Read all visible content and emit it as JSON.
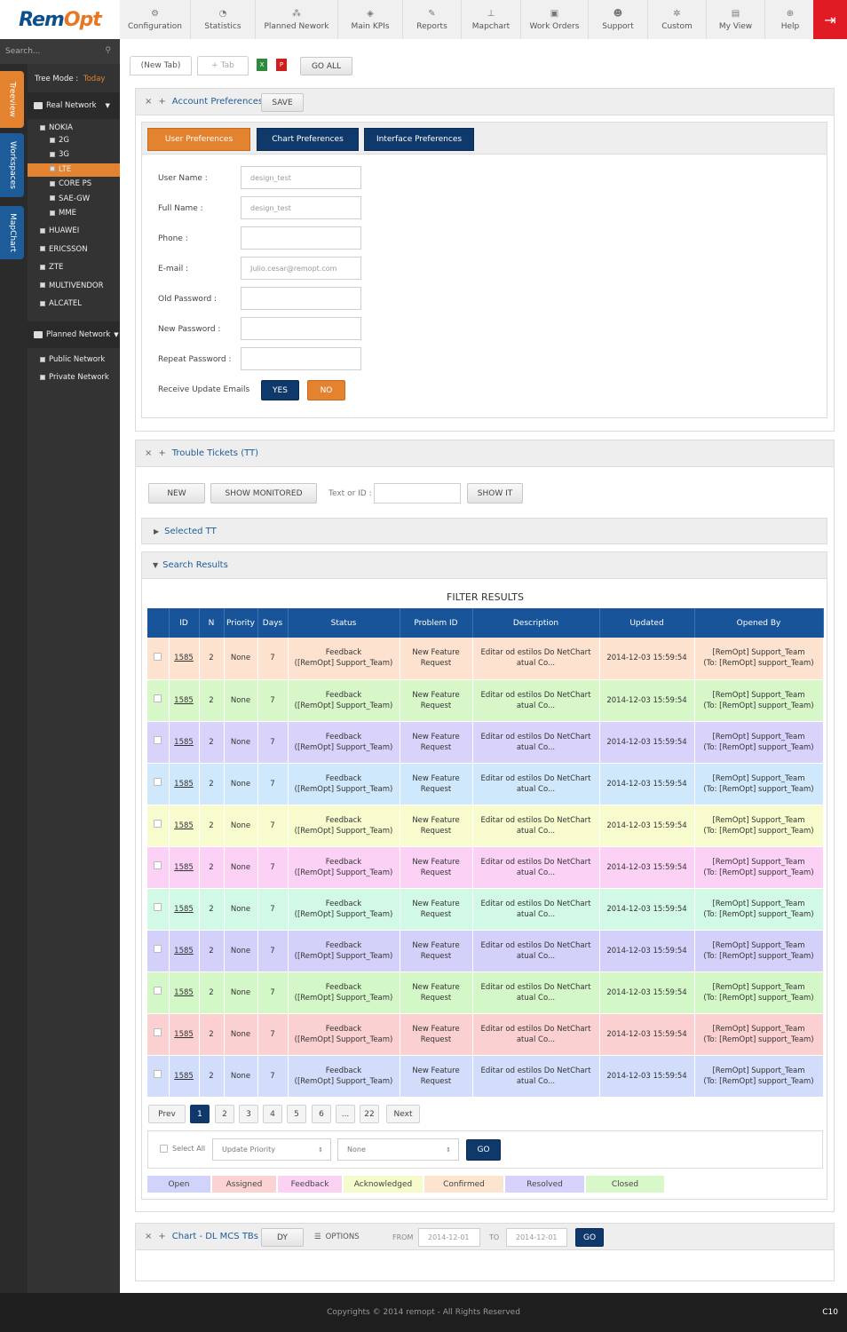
{
  "logo": {
    "part1": "Rem",
    "part2": "Opt"
  },
  "menu": [
    {
      "label": "Configuration",
      "icon": "gears-icon",
      "glyph": "⚙"
    },
    {
      "label": "Statistics",
      "icon": "pie-chart-icon",
      "glyph": "◔"
    },
    {
      "label": "Planned Nework",
      "icon": "network-icon",
      "glyph": "⁂"
    },
    {
      "label": "Main KPIs",
      "icon": "cube-icon",
      "glyph": "◈"
    },
    {
      "label": "Reports",
      "icon": "edit-icon",
      "glyph": "✎"
    },
    {
      "label": "Mapchart",
      "icon": "sitemap-icon",
      "glyph": "⊥"
    },
    {
      "label": "Work Orders",
      "icon": "briefcase-icon",
      "glyph": "▣"
    },
    {
      "label": "Support",
      "icon": "users-icon",
      "glyph": "☻"
    },
    {
      "label": "Custom",
      "icon": "cog-icon",
      "glyph": "✲"
    },
    {
      "label": "My View",
      "icon": "file-icon",
      "glyph": "▤"
    },
    {
      "label": "Help",
      "icon": "lifebuoy-icon",
      "glyph": "⊕"
    }
  ],
  "sidebar": {
    "search_placeholder": "Search...",
    "vertical_tabs": [
      "Treeview",
      "Workspaces",
      "MapChart"
    ],
    "tree_mode_label": "Tree Mode :",
    "tree_mode_value": "Today",
    "real_network": "Real Network",
    "nokia": "NOKIA",
    "nokia_children": [
      "2G",
      "3G",
      "LTE",
      "CORE PS",
      "SAE-GW",
      "MME"
    ],
    "vendors": [
      "HUAWEI",
      "ERICSSON",
      "ZTE",
      "MULTIVENDOR",
      "ALCATEL"
    ],
    "planned_network": "Planned Network",
    "planned_children": [
      "Public Network",
      "Private Network"
    ]
  },
  "tabs": {
    "current": "(New Tab)",
    "add": "+ Tab",
    "go_all": "GO ALL"
  },
  "account": {
    "title": "Account Preferences",
    "save": "SAVE",
    "subtabs": [
      "User Preferences",
      "Chart Preferences",
      "Interface Preferences"
    ],
    "fields": [
      {
        "label": "User Name :",
        "value": "design_test"
      },
      {
        "label": "Full Name :",
        "value": "design_test"
      },
      {
        "label": "Phone :",
        "value": ""
      },
      {
        "label": "E-mail :",
        "value": "Julio.cesar@remopt.com"
      },
      {
        "label": "Old Password :",
        "value": ""
      },
      {
        "label": "New Password :",
        "value": ""
      },
      {
        "label": "Repeat Password :",
        "value": ""
      }
    ],
    "receive_label": "Receive Update Emails",
    "yes": "YES",
    "no": "NO"
  },
  "tt": {
    "title": "Trouble Tickets (TT)",
    "new": "NEW",
    "show_monitored": "SHOW MONITORED",
    "text_or_id": "Text or ID :",
    "show_it": "SHOW IT",
    "selected_tt": "Selected TT",
    "search_results": "Search Results",
    "filter_results": "FILTER RESULTS",
    "columns": [
      "",
      "ID",
      "N",
      "Priority",
      "Days",
      "Status",
      "Problem ID",
      "Description",
      "Updated",
      "Opened By"
    ],
    "rows": [
      {
        "id": "1585",
        "n": "2",
        "priority": "None",
        "days": "7",
        "status1": "Feedback",
        "status2": "([RemOpt] Support_Team)",
        "prob1": "New Feature",
        "prob2": "Request",
        "desc1": "Editar od estilos Do NetChart",
        "desc2": "atual Co...",
        "updated": "2014-12-03 15:59:54",
        "by1": "[RemOpt] Support_Team",
        "by2": "(To: [RemOpt] support_Team)",
        "color": "#fde3cf"
      },
      {
        "id": "1585",
        "n": "2",
        "priority": "None",
        "days": "7",
        "status1": "Feedback",
        "status2": "([RemOpt] Support_Team)",
        "prob1": "New Feature",
        "prob2": "Request",
        "desc1": "Editar od estilos Do NetChart",
        "desc2": "atual Co...",
        "updated": "2014-12-03 15:59:54",
        "by1": "[RemOpt] Support_Team",
        "by2": "(To: [RemOpt] support_Team)",
        "color": "#d7f7c9"
      },
      {
        "id": "1585",
        "n": "2",
        "priority": "None",
        "days": "7",
        "status1": "Feedback",
        "status2": "([RemOpt] Support_Team)",
        "prob1": "New Feature",
        "prob2": "Request",
        "desc1": "Editar od estilos Do NetChart",
        "desc2": "atual Co...",
        "updated": "2014-12-03 15:59:54",
        "by1": "[RemOpt] Support_Team",
        "by2": "(To: [RemOpt] support_Team)",
        "color": "#d9d2fb"
      },
      {
        "id": "1585",
        "n": "2",
        "priority": "None",
        "days": "7",
        "status1": "Feedback",
        "status2": "([RemOpt] Support_Team)",
        "prob1": "New Feature",
        "prob2": "Request",
        "desc1": "Editar od estilos Do NetChart",
        "desc2": "atual Co...",
        "updated": "2014-12-03 15:59:54",
        "by1": "[RemOpt] Support_Team",
        "by2": "(To: [RemOpt] support_Team)",
        "color": "#cfe8fb"
      },
      {
        "id": "1585",
        "n": "2",
        "priority": "None",
        "days": "7",
        "status1": "Feedback",
        "status2": "([RemOpt] Support_Team)",
        "prob1": "New Feature",
        "prob2": "Request",
        "desc1": "Editar od estilos Do NetChart",
        "desc2": "atual Co...",
        "updated": "2014-12-03 15:59:54",
        "by1": "[RemOpt] Support_Team",
        "by2": "(To: [RemOpt] support_Team)",
        "color": "#f7fbcd"
      },
      {
        "id": "1585",
        "n": "2",
        "priority": "None",
        "days": "7",
        "status1": "Feedback",
        "status2": "([RemOpt] Support_Team)",
        "prob1": "New Feature",
        "prob2": "Request",
        "desc1": "Editar od estilos Do NetChart",
        "desc2": "atual Co...",
        "updated": "2014-12-03 15:59:54",
        "by1": "[RemOpt] Support_Team",
        "by2": "(To: [RemOpt] support_Team)",
        "color": "#fbd2f5"
      },
      {
        "id": "1585",
        "n": "2",
        "priority": "None",
        "days": "7",
        "status1": "Feedback",
        "status2": "([RemOpt] Support_Team)",
        "prob1": "New Feature",
        "prob2": "Request",
        "desc1": "Editar od estilos Do NetChart",
        "desc2": "atual Co...",
        "updated": "2014-12-03 15:59:54",
        "by1": "[RemOpt] Support_Team",
        "by2": "(To: [RemOpt] support_Team)",
        "color": "#d2f8e6"
      },
      {
        "id": "1585",
        "n": "2",
        "priority": "None",
        "days": "7",
        "status1": "Feedback",
        "status2": "([RemOpt] Support_Team)",
        "prob1": "New Feature",
        "prob2": "Request",
        "desc1": "Editar od estilos Do NetChart",
        "desc2": "atual Co...",
        "updated": "2014-12-03 15:59:54",
        "by1": "[RemOpt] Support_Team",
        "by2": "(To: [RemOpt] support_Team)",
        "color": "#d3d1fa"
      },
      {
        "id": "1585",
        "n": "2",
        "priority": "None",
        "days": "7",
        "status1": "Feedback",
        "status2": "([RemOpt] Support_Team)",
        "prob1": "New Feature",
        "prob2": "Request",
        "desc1": "Editar od estilos Do NetChart",
        "desc2": "atual Co...",
        "updated": "2014-12-03 15:59:54",
        "by1": "[RemOpt] Support_Team",
        "by2": "(To: [RemOpt] support_Team)",
        "color": "#d3f7c6"
      },
      {
        "id": "1585",
        "n": "2",
        "priority": "None",
        "days": "7",
        "status1": "Feedback",
        "status2": "([RemOpt] Support_Team)",
        "prob1": "New Feature",
        "prob2": "Request",
        "desc1": "Editar od estilos Do NetChart",
        "desc2": "atual Co...",
        "updated": "2014-12-03 15:59:54",
        "by1": "[RemOpt] Support_Team",
        "by2": "(To: [RemOpt] support_Team)",
        "color": "#fbd0d0"
      },
      {
        "id": "1585",
        "n": "2",
        "priority": "None",
        "days": "7",
        "status1": "Feedback",
        "status2": "([RemOpt] Support_Team)",
        "prob1": "New Feature",
        "prob2": "Request",
        "desc1": "Editar od estilos Do NetChart",
        "desc2": "atual Co...",
        "updated": "2014-12-03 15:59:54",
        "by1": "[RemOpt] Support_Team",
        "by2": "(To: [RemOpt] support_Team)",
        "color": "#d2dcfb"
      }
    ],
    "pagination": [
      "Prev",
      "1",
      "2",
      "3",
      "4",
      "5",
      "6",
      "...",
      "22",
      "Next"
    ],
    "select_all": "Select All",
    "update_priority": "Update Priority",
    "none_option": "None",
    "go": "GO",
    "legend": [
      {
        "label": "Open",
        "color": "#d2d3fb"
      },
      {
        "label": "Assigned",
        "color": "#fbd3d3"
      },
      {
        "label": "Feedback",
        "color": "#fbd1f4"
      },
      {
        "label": "Acknowledged",
        "color": "#f6fbcc"
      },
      {
        "label": "Confirmed",
        "color": "#fde4cf"
      },
      {
        "label": "Resolved",
        "color": "#d6d2fb"
      },
      {
        "label": "Closed",
        "color": "#d9f8ca"
      }
    ]
  },
  "chart_panel": {
    "title": "Chart - DL MCS TBs",
    "dy": "DY",
    "options": "OPTIONS",
    "from_label": "FROM",
    "from_value": "2014-12-01",
    "to_label": "TO",
    "to_value": "2014-12-01",
    "go": "GO"
  },
  "footer": {
    "copyright": "Copyrights © 2014 remopt - All Rights Reserved",
    "code": "C10"
  },
  "colors": {
    "accent_blue": "#10396b",
    "accent_orange": "#e3822f",
    "header_blue": "#17549a",
    "logout_red": "#e01b24"
  }
}
